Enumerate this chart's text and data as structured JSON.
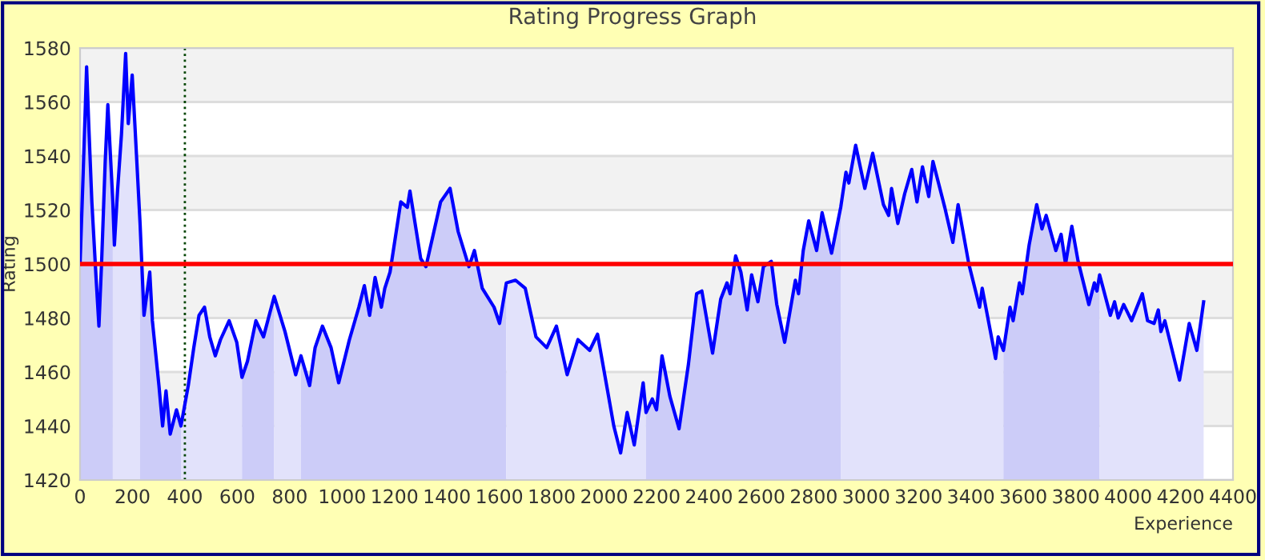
{
  "chart_data": {
    "type": "line",
    "title": "Rating Progress Graph",
    "xlabel": "Experience",
    "ylabel": "Rating",
    "xlim": [
      0,
      4400
    ],
    "xticks": [
      0,
      200,
      400,
      600,
      800,
      1000,
      1200,
      1400,
      1600,
      1800,
      2000,
      2200,
      2400,
      2600,
      2800,
      3000,
      3200,
      3400,
      3600,
      3800,
      4000,
      4200,
      4400
    ],
    "ylim": [
      1420,
      1580
    ],
    "yticks": [
      1420,
      1440,
      1460,
      1480,
      1500,
      1520,
      1540,
      1560,
      1580
    ],
    "grid": "y",
    "bands": [
      {
        "axis": "y",
        "from": 1440,
        "to": 1460,
        "color": "#f2f2f2"
      },
      {
        "axis": "y",
        "from": 1480,
        "to": 1500,
        "color": "#f2f2f2"
      },
      {
        "axis": "y",
        "from": 1520,
        "to": 1540,
        "color": "#f2f2f2"
      },
      {
        "axis": "y",
        "from": 1560,
        "to": 1580,
        "color": "#f2f2f2"
      }
    ],
    "ref_lines": [
      {
        "axis": "y",
        "value": 1500,
        "color": "#ff0000",
        "line_style": "solid"
      },
      {
        "axis": "x",
        "value": 400,
        "color": "#004400",
        "line_style": "dotted"
      }
    ],
    "series": [
      {
        "type": "area",
        "color": "#ccccf8",
        "x": [
          0,
          12,
          25,
          33,
          45,
          61,
          72,
          82,
          96,
          106,
          125
        ],
        "values": [
          1500,
          1534,
          1573,
          1552,
          1523,
          1495,
          1477,
          1500,
          1538,
          1559,
          1523
        ]
      },
      {
        "type": "area",
        "color": "#e2e2fb",
        "x": [
          125,
          131,
          143,
          158,
          174,
          184,
          199,
          209,
          229
        ],
        "values": [
          1523,
          1507,
          1527,
          1548,
          1578,
          1552,
          1570,
          1552,
          1515
        ]
      },
      {
        "type": "area",
        "color": "#ccccf8",
        "x": [
          229,
          244,
          266,
          276,
          301,
          315,
          328,
          344,
          368,
          385
        ],
        "values": [
          1515,
          1481,
          1497,
          1479,
          1455,
          1440,
          1453,
          1437,
          1446,
          1440
        ]
      },
      {
        "type": "area",
        "color": "#e2e2fb",
        "x": [
          385,
          413,
          434,
          454,
          475,
          495,
          516,
          536,
          569,
          598,
          618
        ],
        "values": [
          1440,
          1455,
          1469,
          1481,
          1484,
          1473,
          1466,
          1472,
          1479,
          1471,
          1458
        ]
      },
      {
        "type": "area",
        "color": "#ccccf8",
        "x": [
          618,
          639,
          671,
          700,
          741
        ],
        "values": [
          1458,
          1464,
          1479,
          1473,
          1488
        ]
      },
      {
        "type": "area",
        "color": "#e2e2fb",
        "x": [
          741,
          782,
          823,
          843
        ],
        "values": [
          1488,
          1475,
          1459,
          1466
        ]
      },
      {
        "type": "area",
        "color": "#ccccf8",
        "x": [
          843,
          876,
          897,
          925,
          958,
          987,
          1028,
          1064,
          1085,
          1105,
          1126,
          1150,
          1163,
          1183,
          1224,
          1249,
          1259,
          1300,
          1320,
          1376,
          1412,
          1443,
          1484,
          1505,
          1535,
          1580,
          1601,
          1627
        ],
        "values": [
          1466,
          1455,
          1469,
          1477,
          1469,
          1456,
          1472,
          1484,
          1492,
          1481,
          1495,
          1484,
          1491,
          1497,
          1523,
          1521,
          1527,
          1502,
          1499,
          1523,
          1528,
          1512,
          1499,
          1505,
          1491,
          1484,
          1478,
          1493
        ]
      },
      {
        "type": "area",
        "color": "#e2e2fb",
        "x": [
          1627,
          1662,
          1699,
          1740,
          1781,
          1818,
          1859,
          1900,
          1945,
          1975,
          2037,
          2063,
          2088,
          2115,
          2149,
          2160
        ],
        "values": [
          1493,
          1494,
          1491,
          1473,
          1469,
          1477,
          1459,
          1472,
          1468,
          1474,
          1440,
          1430,
          1445,
          1433,
          1456,
          1445
        ]
      },
      {
        "type": "area",
        "color": "#ccccf8",
        "x": [
          2160,
          2184,
          2200,
          2221,
          2251,
          2286,
          2322,
          2353,
          2373,
          2414,
          2445,
          2469,
          2481,
          2502,
          2522,
          2546,
          2563,
          2587,
          2608,
          2638,
          2659,
          2689,
          2730,
          2742,
          2760,
          2781,
          2811,
          2832,
          2868,
          2903
        ],
        "values": [
          1445,
          1450,
          1446,
          1466,
          1451,
          1439,
          1463,
          1489,
          1490,
          1467,
          1487,
          1493,
          1489,
          1503,
          1497,
          1483,
          1496,
          1486,
          1499,
          1501,
          1485,
          1471,
          1494,
          1489,
          1505,
          1516,
          1505,
          1519,
          1504,
          1521
        ]
      },
      {
        "type": "area",
        "color": "#e2e2fb",
        "x": [
          2903,
          2923,
          2934,
          2960,
          2995,
          3025,
          3066,
          3086,
          3097,
          3121,
          3147,
          3174,
          3194,
          3215,
          3239,
          3255,
          3300,
          3331,
          3351,
          3392,
          3433,
          3443,
          3494,
          3504,
          3524
        ],
        "values": [
          1521,
          1534,
          1530,
          1544,
          1528,
          1541,
          1522,
          1518,
          1528,
          1515,
          1526,
          1535,
          1523,
          1536,
          1525,
          1538,
          1521,
          1508,
          1522,
          1500,
          1484,
          1491,
          1465,
          1473,
          1468
        ]
      },
      {
        "type": "area",
        "color": "#ccccf8",
        "x": [
          3524,
          3549,
          3561,
          3585,
          3596,
          3622,
          3651,
          3671,
          3687,
          3724,
          3744,
          3761,
          3785,
          3809,
          3850,
          3871,
          3881,
          3891
        ],
        "values": [
          1468,
          1484,
          1479,
          1493,
          1489,
          1507,
          1522,
          1513,
          1518,
          1505,
          1511,
          1500,
          1514,
          1501,
          1485,
          1493,
          1490,
          1496
        ]
      },
      {
        "type": "area",
        "color": "#e2e2fb",
        "x": [
          3891,
          3932,
          3948,
          3962,
          3983,
          4013,
          4054,
          4074,
          4099,
          4115,
          4125,
          4140,
          4196,
          4233,
          4262,
          4288
        ],
        "values": [
          1496,
          1481,
          1486,
          1480,
          1485,
          1479,
          1489,
          1479,
          1478,
          1483,
          1475,
          1479,
          1457,
          1478,
          1468,
          1486
        ]
      },
      {
        "color": "#0000ff",
        "x": [
          0,
          12,
          25,
          33,
          45,
          61,
          72,
          82,
          96,
          106,
          125,
          131,
          143,
          158,
          174,
          184,
          199,
          209,
          229,
          244,
          266,
          276,
          301,
          315,
          328,
          344,
          368,
          385,
          413,
          434,
          454,
          475,
          495,
          516,
          536,
          569,
          598,
          618,
          639,
          671,
          700,
          741,
          782,
          823,
          843,
          876,
          897,
          925,
          958,
          987,
          1028,
          1064,
          1085,
          1105,
          1126,
          1150,
          1163,
          1183,
          1224,
          1249,
          1259,
          1300,
          1320,
          1376,
          1412,
          1443,
          1484,
          1505,
          1535,
          1580,
          1601,
          1627,
          1662,
          1699,
          1740,
          1781,
          1818,
          1859,
          1900,
          1945,
          1975,
          2037,
          2063,
          2088,
          2115,
          2149,
          2160,
          2184,
          2200,
          2221,
          2251,
          2286,
          2322,
          2353,
          2373,
          2414,
          2445,
          2469,
          2481,
          2502,
          2522,
          2546,
          2563,
          2587,
          2608,
          2638,
          2659,
          2689,
          2730,
          2742,
          2760,
          2781,
          2811,
          2832,
          2868,
          2903,
          2923,
          2934,
          2960,
          2995,
          3025,
          3066,
          3086,
          3097,
          3121,
          3147,
          3174,
          3194,
          3215,
          3239,
          3255,
          3300,
          3331,
          3351,
          3392,
          3433,
          3443,
          3494,
          3504,
          3524,
          3549,
          3561,
          3585,
          3596,
          3622,
          3651,
          3671,
          3687,
          3724,
          3744,
          3761,
          3785,
          3809,
          3850,
          3871,
          3881,
          3891,
          3932,
          3948,
          3962,
          3983,
          4013,
          4054,
          4074,
          4099,
          4115,
          4125,
          4140,
          4196,
          4233,
          4262,
          4288
        ],
        "values": [
          1500,
          1534,
          1573,
          1552,
          1523,
          1495,
          1477,
          1500,
          1538,
          1559,
          1523,
          1507,
          1527,
          1548,
          1578,
          1552,
          1570,
          1552,
          1515,
          1481,
          1497,
          1479,
          1455,
          1440,
          1453,
          1437,
          1446,
          1440,
          1455,
          1469,
          1481,
          1484,
          1473,
          1466,
          1472,
          1479,
          1471,
          1458,
          1464,
          1479,
          1473,
          1488,
          1475,
          1459,
          1466,
          1455,
          1469,
          1477,
          1469,
          1456,
          1472,
          1484,
          1492,
          1481,
          1495,
          1484,
          1491,
          1497,
          1523,
          1521,
          1527,
          1502,
          1499,
          1523,
          1528,
          1512,
          1499,
          1505,
          1491,
          1484,
          1478,
          1493,
          1494,
          1491,
          1473,
          1469,
          1477,
          1459,
          1472,
          1468,
          1474,
          1440,
          1430,
          1445,
          1433,
          1456,
          1445,
          1450,
          1446,
          1466,
          1451,
          1439,
          1463,
          1489,
          1490,
          1467,
          1487,
          1493,
          1489,
          1503,
          1497,
          1483,
          1496,
          1486,
          1499,
          1501,
          1485,
          1471,
          1494,
          1489,
          1505,
          1516,
          1505,
          1519,
          1504,
          1521,
          1534,
          1530,
          1544,
          1528,
          1541,
          1522,
          1518,
          1528,
          1515,
          1526,
          1535,
          1523,
          1536,
          1525,
          1538,
          1521,
          1508,
          1522,
          1500,
          1484,
          1491,
          1465,
          1473,
          1468,
          1484,
          1479,
          1493,
          1489,
          1507,
          1522,
          1513,
          1518,
          1505,
          1511,
          1500,
          1514,
          1501,
          1485,
          1493,
          1490,
          1496,
          1481,
          1486,
          1480,
          1485,
          1479,
          1489,
          1479,
          1478,
          1483,
          1475,
          1479,
          1457,
          1478,
          1468,
          1486
        ]
      }
    ]
  }
}
